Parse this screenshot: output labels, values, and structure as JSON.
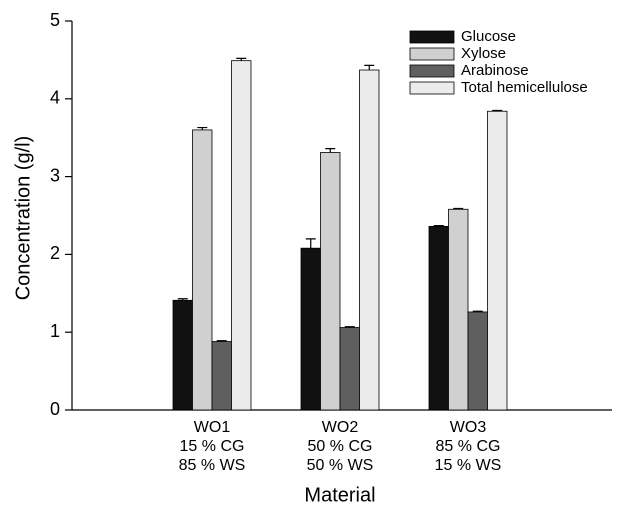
{
  "chart_data": {
    "type": "bar",
    "x_label": "Material",
    "y_label": "Concentration (g/l)",
    "categories": [
      [
        "WO1",
        "15 % CG",
        "85 % WS"
      ],
      [
        "WO2",
        "50 % CG",
        "50 % WS"
      ],
      [
        "WO3",
        "85 % CG",
        "15 % WS"
      ]
    ],
    "series": [
      {
        "name": "Glucose",
        "color": "#111111",
        "values": [
          1.41,
          2.08,
          2.36
        ],
        "errors": [
          0.02,
          0.12,
          0.01
        ]
      },
      {
        "name": "Xylose",
        "color": "#d0d0d0",
        "values": [
          3.6,
          3.31,
          2.58
        ],
        "errors": [
          0.03,
          0.05,
          0.01
        ]
      },
      {
        "name": "Arabinose",
        "color": "#5f5f5f",
        "values": [
          0.88,
          1.06,
          1.26
        ],
        "errors": [
          0.01,
          0.01,
          0.01
        ]
      },
      {
        "name": "Total hemicellulose",
        "color": "#ebebeb",
        "values": [
          4.49,
          4.37,
          3.84
        ],
        "errors": [
          0.03,
          0.06,
          0.01
        ]
      }
    ],
    "ylim": [
      0,
      5
    ],
    "yticks": [
      0,
      1,
      2,
      3,
      4,
      5
    ],
    "legend": "upper right"
  }
}
